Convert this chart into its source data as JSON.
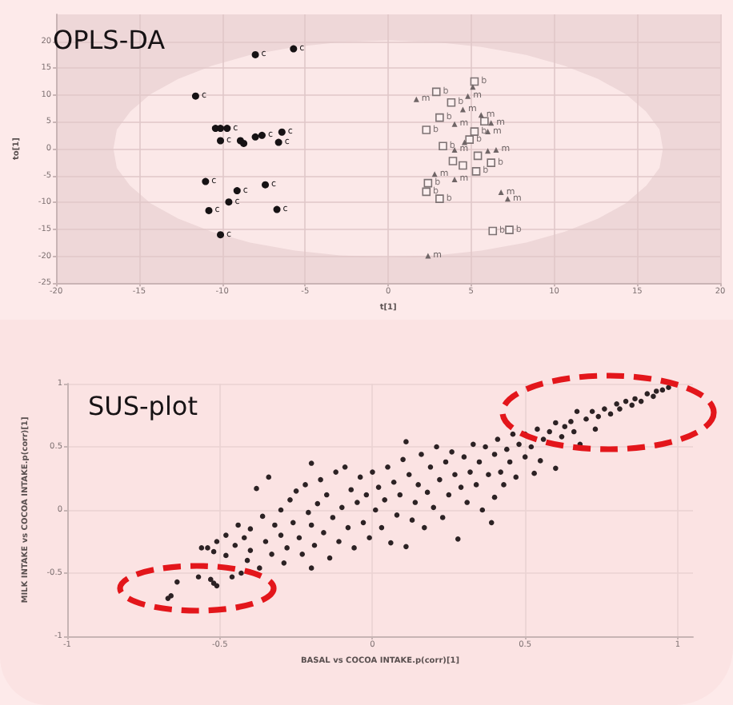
{
  "chart_data": [
    {
      "type": "scatter",
      "title": "OPLS-DA",
      "xlabel": "t[1]",
      "ylabel": "to[1]",
      "xlim": [
        -20,
        20
      ],
      "ylim": [
        -25,
        25
      ],
      "xticks": [
        -20,
        -15,
        -10,
        -5,
        0,
        5,
        10,
        15,
        20
      ],
      "yticks": [
        -25,
        -20,
        -15,
        -10,
        -5,
        0,
        5,
        10,
        15,
        20
      ],
      "grid": true,
      "series": [
        {
          "type": "area",
          "color": "#fbe8e8",
          "x": [
            -16.5,
            -16.3,
            -15.5,
            -14.3,
            -12.6,
            -10.6,
            -8.3,
            -5.6,
            -2.9,
            0,
            2.9,
            5.6,
            8.3,
            10.6,
            12.6,
            14.3,
            15.5,
            16.3,
            16.5,
            16.3,
            15.5,
            14.3,
            12.6,
            10.6,
            8.3,
            5.6,
            2.9,
            0,
            -2.9,
            -5.6,
            -8.3,
            -10.6,
            -12.6,
            -14.3,
            -15.5,
            -16.3,
            -16.5
          ],
          "values": [
            0,
            3.5,
            6.8,
            10,
            12.9,
            15.3,
            17.3,
            18.8,
            19.7,
            20,
            19.7,
            18.8,
            17.3,
            15.3,
            12.9,
            10,
            6.8,
            3.5,
            0,
            -3.5,
            -6.8,
            -10,
            -12.9,
            -15.3,
            -17.3,
            -18.8,
            -19.7,
            -20,
            -19.7,
            -18.8,
            -17.3,
            -15.3,
            -12.9,
            -10,
            -6.8,
            -3.5,
            0
          ]
        },
        {
          "color": "#161214",
          "marker": "circle",
          "x": [
            -5.7,
            -8.0,
            -11.6,
            -10.4,
            -10.1,
            -9.7,
            -10.1,
            -8.9,
            -8.7,
            -8.0,
            -7.6,
            -6.4,
            -6.6,
            -11.0,
            -9.1,
            -7.4,
            -9.6,
            -10.8,
            -6.7,
            -10.1
          ],
          "values": [
            18.6,
            17.5,
            9.8,
            3.8,
            3.8,
            3.8,
            1.5,
            1.5,
            1.0,
            2.2,
            2.5,
            3.1,
            1.2,
            -6.1,
            -7.8,
            -6.7,
            -9.9,
            -11.5,
            -11.3,
            -16.0
          ],
          "value_labels": [
            "c",
            "c",
            "c",
            null,
            null,
            "c",
            "c",
            null,
            null,
            null,
            "c",
            "c",
            "c",
            "c",
            "c",
            "c",
            "c",
            "c",
            "c",
            "c"
          ]
        },
        {
          "color": "#7d7273",
          "marker": "square",
          "x": [
            5.2,
            2.9,
            3.8,
            3.1,
            2.3,
            5.8,
            5.2,
            4.9,
            3.3,
            3.9,
            5.4,
            6.2,
            5.3,
            4.5,
            2.4,
            2.3,
            3.1,
            6.3,
            7.3
          ],
          "values": [
            12.5,
            10.6,
            8.6,
            5.8,
            3.5,
            5.1,
            3.2,
            1.7,
            0.5,
            -2.3,
            -1.3,
            -2.6,
            -4.2,
            -3.1,
            -6.4,
            -8.0,
            -9.3,
            -15.3,
            -15.1
          ],
          "value_labels": [
            "b",
            "b",
            "b",
            "b",
            "b",
            null,
            "b",
            "b",
            "b",
            null,
            null,
            "b",
            "b",
            null,
            "b",
            "b",
            "b",
            "b",
            "b"
          ]
        },
        {
          "color": "#6f6566",
          "marker": "triangle",
          "x": [
            5.1,
            1.7,
            4.8,
            4.5,
            5.6,
            4.0,
            6.2,
            6.0,
            4.6,
            4.0,
            6.0,
            6.5,
            2.8,
            4.0,
            6.8,
            7.2,
            2.4
          ],
          "values": [
            11.5,
            9.2,
            9.8,
            7.3,
            6.3,
            4.6,
            4.8,
            3.2,
            1.2,
            -0.2,
            -0.4,
            -0.2,
            -4.7,
            -5.7,
            -8.1,
            -9.3,
            -19.9
          ],
          "value_labels": [
            null,
            "m",
            "m",
            "m",
            "m",
            "m",
            "m",
            "m",
            null,
            "m",
            null,
            "m",
            "m",
            "m",
            "m",
            "m",
            "m"
          ]
        }
      ]
    },
    {
      "type": "scatter",
      "title": "SUS-plot",
      "xlabel": "BASAL vs COCOA INTAKE.p(corr)[1]",
      "ylabel": "MILK INTAKE vs COCOA INTAKE.p(corr)[1]",
      "xlim": [
        -1,
        1.05
      ],
      "ylim": [
        -1,
        1
      ],
      "xticks": [
        -1,
        -0.5,
        0,
        0.5,
        1
      ],
      "yticks": [
        -1,
        -0.5,
        0,
        0.5,
        1
      ],
      "grid": true,
      "marker": "circle",
      "color": "#2c2224",
      "x": [
        -0.67,
        -0.66,
        -0.64,
        -0.57,
        -0.53,
        -0.52,
        -0.51,
        -0.46,
        -0.43,
        -0.41,
        -0.37,
        -0.2,
        -0.56,
        -0.54,
        -0.52,
        -0.51,
        -0.48,
        -0.48,
        -0.45,
        -0.44,
        -0.42,
        -0.4,
        -0.4,
        -0.38,
        -0.36,
        -0.35,
        -0.34,
        -0.33,
        -0.32,
        -0.3,
        -0.3,
        -0.29,
        -0.28,
        -0.27,
        -0.26,
        -0.25,
        -0.24,
        -0.23,
        -0.22,
        -0.21,
        -0.2,
        -0.2,
        -0.19,
        -0.18,
        -0.17,
        -0.16,
        -0.15,
        -0.14,
        -0.13,
        -0.12,
        -0.11,
        -0.1,
        -0.09,
        -0.08,
        -0.07,
        -0.06,
        -0.05,
        -0.04,
        -0.03,
        -0.02,
        -0.01,
        0,
        0.01,
        0.02,
        0.03,
        0.04,
        0.05,
        0.06,
        0.07,
        0.08,
        0.09,
        0.1,
        0.11,
        0.11,
        0.12,
        0.13,
        0.14,
        0.15,
        0.16,
        0.17,
        0.18,
        0.19,
        0.2,
        0.21,
        0.22,
        0.23,
        0.24,
        0.25,
        0.26,
        0.27,
        0.28,
        0.29,
        0.3,
        0.31,
        0.32,
        0.33,
        0.34,
        0.35,
        0.36,
        0.37,
        0.38,
        0.39,
        0.4,
        0.4,
        0.41,
        0.42,
        0.43,
        0.44,
        0.45,
        0.46,
        0.47,
        0.48,
        0.5,
        0.5,
        0.52,
        0.53,
        0.54,
        0.55,
        0.56,
        0.58,
        0.6,
        0.6,
        0.62,
        0.63,
        0.65,
        0.66,
        0.67,
        0.68,
        0.7,
        0.72,
        0.73,
        0.74,
        0.76,
        0.78,
        0.8,
        0.81,
        0.83,
        0.85,
        0.86,
        0.88,
        0.9,
        0.92,
        0.93,
        0.95,
        0.97
      ],
      "values": [
        -0.7,
        -0.68,
        -0.57,
        -0.53,
        -0.55,
        -0.58,
        -0.6,
        -0.53,
        -0.5,
        -0.4,
        -0.46,
        -0.46,
        -0.3,
        -0.3,
        -0.33,
        -0.25,
        -0.2,
        -0.36,
        -0.28,
        -0.12,
        -0.22,
        -0.15,
        -0.32,
        0.17,
        -0.05,
        -0.25,
        0.26,
        -0.35,
        -0.12,
        -0.2,
        0,
        -0.42,
        -0.3,
        0.08,
        -0.1,
        0.15,
        -0.22,
        -0.35,
        0.2,
        -0.02,
        0.37,
        -0.12,
        -0.28,
        0.05,
        0.24,
        -0.18,
        0.12,
        -0.38,
        -0.06,
        0.3,
        -0.25,
        0.02,
        0.34,
        -0.14,
        0.16,
        -0.3,
        0.06,
        0.26,
        -0.1,
        0.12,
        -0.22,
        0.3,
        0,
        0.18,
        -0.14,
        0.08,
        0.34,
        -0.26,
        0.22,
        -0.04,
        0.12,
        0.4,
        0.54,
        -0.29,
        0.28,
        -0.08,
        0.06,
        0.2,
        0.44,
        -0.14,
        0.14,
        0.34,
        0.02,
        0.5,
        0.24,
        -0.06,
        0.38,
        0.12,
        0.46,
        0.28,
        -0.23,
        0.18,
        0.42,
        0.06,
        0.3,
        0.52,
        0.2,
        0.38,
        0,
        0.5,
        0.28,
        -0.1,
        0.1,
        0.44,
        0.56,
        0.3,
        0.2,
        0.48,
        0.38,
        0.6,
        0.26,
        0.52,
        0.42,
        0.6,
        0.5,
        0.29,
        0.64,
        0.39,
        0.56,
        0.62,
        0.33,
        0.69,
        0.58,
        0.66,
        0.7,
        0.62,
        0.78,
        0.52,
        0.72,
        0.78,
        0.64,
        0.74,
        0.8,
        0.76,
        0.84,
        0.8,
        0.86,
        0.83,
        0.88,
        0.86,
        0.92,
        0.9,
        0.94,
        0.95,
        0.97
      ]
    }
  ]
}
